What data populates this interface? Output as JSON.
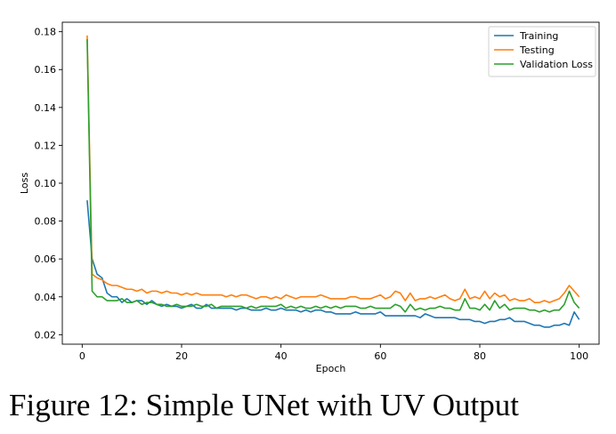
{
  "caption": "Figure 12: Simple UNet with UV Output",
  "chart_data": {
    "type": "line",
    "title": "",
    "xlabel": "Epoch",
    "ylabel": "Loss",
    "xlim": [
      -4,
      104
    ],
    "ylim": [
      0.015,
      0.185
    ],
    "xticks": [
      0,
      20,
      40,
      60,
      80,
      100
    ],
    "xtick_labels": [
      "0",
      "20",
      "40",
      "60",
      "80",
      "100"
    ],
    "yticks": [
      0.02,
      0.04,
      0.06,
      0.08,
      0.1,
      0.12,
      0.14,
      0.16,
      0.18
    ],
    "ytick_labels": [
      "0.02",
      "0.04",
      "0.06",
      "0.08",
      "0.10",
      "0.12",
      "0.14",
      "0.16",
      "0.18"
    ],
    "grid": false,
    "legend_position": "top-right",
    "x": [
      1,
      2,
      3,
      4,
      5,
      6,
      7,
      8,
      9,
      10,
      11,
      12,
      13,
      14,
      15,
      16,
      17,
      18,
      19,
      20,
      21,
      22,
      23,
      24,
      25,
      26,
      27,
      28,
      29,
      30,
      31,
      32,
      33,
      34,
      35,
      36,
      37,
      38,
      39,
      40,
      41,
      42,
      43,
      44,
      45,
      46,
      47,
      48,
      49,
      50,
      51,
      52,
      53,
      54,
      55,
      56,
      57,
      58,
      59,
      60,
      61,
      62,
      63,
      64,
      65,
      66,
      67,
      68,
      69,
      70,
      71,
      72,
      73,
      74,
      75,
      76,
      77,
      78,
      79,
      80,
      81,
      82,
      83,
      84,
      85,
      86,
      87,
      88,
      89,
      90,
      91,
      92,
      93,
      94,
      95,
      96,
      97,
      98,
      99,
      100
    ],
    "series": [
      {
        "name": "Training",
        "color": "#1f77b4",
        "values": [
          0.091,
          0.06,
          0.052,
          0.05,
          0.042,
          0.04,
          0.04,
          0.037,
          0.039,
          0.037,
          0.038,
          0.038,
          0.036,
          0.038,
          0.036,
          0.035,
          0.036,
          0.035,
          0.035,
          0.034,
          0.035,
          0.036,
          0.034,
          0.034,
          0.036,
          0.034,
          0.034,
          0.034,
          0.034,
          0.034,
          0.033,
          0.034,
          0.034,
          0.033,
          0.033,
          0.033,
          0.034,
          0.033,
          0.033,
          0.034,
          0.033,
          0.033,
          0.033,
          0.032,
          0.033,
          0.032,
          0.033,
          0.033,
          0.032,
          0.032,
          0.031,
          0.031,
          0.031,
          0.031,
          0.032,
          0.031,
          0.031,
          0.031,
          0.031,
          0.032,
          0.03,
          0.03,
          0.03,
          0.03,
          0.03,
          0.03,
          0.03,
          0.029,
          0.031,
          0.03,
          0.029,
          0.029,
          0.029,
          0.029,
          0.029,
          0.028,
          0.028,
          0.028,
          0.027,
          0.027,
          0.026,
          0.027,
          0.027,
          0.028,
          0.028,
          0.029,
          0.027,
          0.027,
          0.027,
          0.026,
          0.025,
          0.025,
          0.024,
          0.024,
          0.025,
          0.025,
          0.026,
          0.025,
          0.032,
          0.028
        ]
      },
      {
        "name": "Testing",
        "color": "#ff7f0e",
        "values": [
          0.178,
          0.052,
          0.05,
          0.049,
          0.047,
          0.046,
          0.046,
          0.045,
          0.044,
          0.044,
          0.043,
          0.044,
          0.042,
          0.043,
          0.043,
          0.042,
          0.043,
          0.042,
          0.042,
          0.041,
          0.042,
          0.041,
          0.042,
          0.041,
          0.041,
          0.041,
          0.041,
          0.041,
          0.04,
          0.041,
          0.04,
          0.041,
          0.041,
          0.04,
          0.039,
          0.04,
          0.04,
          0.039,
          0.04,
          0.039,
          0.041,
          0.04,
          0.039,
          0.04,
          0.04,
          0.04,
          0.04,
          0.041,
          0.04,
          0.039,
          0.039,
          0.039,
          0.039,
          0.04,
          0.04,
          0.039,
          0.039,
          0.039,
          0.04,
          0.041,
          0.039,
          0.04,
          0.043,
          0.042,
          0.038,
          0.042,
          0.038,
          0.039,
          0.039,
          0.04,
          0.039,
          0.04,
          0.041,
          0.039,
          0.038,
          0.039,
          0.044,
          0.039,
          0.04,
          0.039,
          0.043,
          0.039,
          0.042,
          0.04,
          0.041,
          0.038,
          0.039,
          0.038,
          0.038,
          0.039,
          0.037,
          0.037,
          0.038,
          0.037,
          0.038,
          0.039,
          0.042,
          0.046,
          0.043,
          0.04
        ]
      },
      {
        "name": "Validation Loss",
        "color": "#2ca02c",
        "values": [
          0.176,
          0.043,
          0.04,
          0.04,
          0.038,
          0.038,
          0.038,
          0.039,
          0.037,
          0.037,
          0.038,
          0.036,
          0.037,
          0.037,
          0.036,
          0.036,
          0.035,
          0.035,
          0.036,
          0.035,
          0.035,
          0.035,
          0.036,
          0.035,
          0.035,
          0.036,
          0.034,
          0.035,
          0.035,
          0.035,
          0.035,
          0.035,
          0.034,
          0.035,
          0.034,
          0.035,
          0.035,
          0.035,
          0.035,
          0.036,
          0.034,
          0.035,
          0.034,
          0.035,
          0.034,
          0.034,
          0.035,
          0.034,
          0.035,
          0.034,
          0.035,
          0.034,
          0.035,
          0.035,
          0.035,
          0.034,
          0.034,
          0.035,
          0.034,
          0.034,
          0.034,
          0.034,
          0.036,
          0.035,
          0.032,
          0.036,
          0.033,
          0.034,
          0.033,
          0.034,
          0.034,
          0.035,
          0.034,
          0.034,
          0.033,
          0.033,
          0.039,
          0.034,
          0.034,
          0.033,
          0.036,
          0.033,
          0.038,
          0.034,
          0.036,
          0.033,
          0.034,
          0.034,
          0.034,
          0.033,
          0.033,
          0.032,
          0.033,
          0.032,
          0.033,
          0.033,
          0.036,
          0.043,
          0.037,
          0.034
        ]
      }
    ]
  }
}
